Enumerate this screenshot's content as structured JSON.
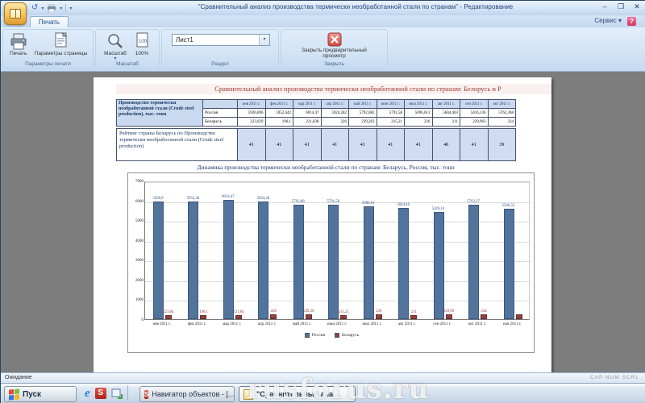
{
  "window": {
    "title": "\"Сравнительный анализ производства термически необработанной стали по странам\" - Редактирование",
    "service": "Сервис",
    "help": "?"
  },
  "tabs": {
    "print": "Печать"
  },
  "ribbon": {
    "print_btn": "Печать",
    "page_setup_btn": "Параметры страницы",
    "scale_btn": "Масштаб",
    "zoom100_btn": "100%",
    "sheet": "Лист1",
    "close_btn": "Закрыть предварительный просмотр",
    "group_print": "Параметры печати",
    "group_scale": "Масштаб",
    "group_section": "Раздел",
    "group_close": "Закрыть"
  },
  "icons": {
    "app": "orange-book",
    "qat": [
      "undo",
      "printer",
      "customize-arrow"
    ],
    "print": "printer",
    "page_setup": "page-with-printer",
    "scale": "magnifier",
    "zoom100": "page",
    "close_preview": "red-x",
    "help": "question-mark"
  },
  "document": {
    "title": "Сравнительный анализ производства термически необработанной стали по странам: Белорусь и Р",
    "table": {
      "corner_header": "Производство термически необработанной стали (Crude steel production), тыс. тонн",
      "months": [
        "янв 2011 г.",
        "фев 2011 г.",
        "мар 2011 г.",
        "апр 2011 г.",
        "май 2011 г.",
        "июн 2011 г.",
        "июл 2011 г.",
        "авг 2011 г.",
        "сен 2011 г.",
        "окт 2011 г."
      ],
      "rows": [
        {
          "label": "Россия",
          "values": [
            "5926,896",
            "5952,442",
            "6014,47",
            "5924,282",
            "5792,082",
            "5791,58",
            "5696,613",
            "5604,463",
            "5416,136",
            "5762,368"
          ]
        },
        {
          "label": "Беларусь",
          "values": [
            "223,039",
            "196,1",
            "221,838",
            "226",
            "239,263",
            "215,21",
            "226",
            "211",
            "229,963",
            "234"
          ]
        }
      ],
      "rating_label": "Рейтинг страны Беларусь по Производство термически необработанной стали (Crude steel production)",
      "rating_values": [
        "41",
        "41",
        "41",
        "41",
        "41",
        "41",
        "41",
        "40",
        "41",
        "39"
      ]
    }
  },
  "chart_data": {
    "type": "bar",
    "title": "Динамика производства термически необработанной стали по странам:   Беларусь, Россия, тыс. тонн",
    "categories": [
      "янв 2011 г.",
      "фев 2011 г.",
      "мар 2011 г.",
      "апр 2011 г.",
      "май 2011 г.",
      "июн 2011 г.",
      "июл 2011 г.",
      "авг 2011 г.",
      "сен 2011 г.",
      "окт 2011 г.",
      "ноя 2011 г."
    ],
    "series": [
      {
        "name": "Россия",
        "color": "#52749c",
        "border": "#3a567c",
        "label_color": "#1f497d",
        "values": [
          5926.896,
          5952.442,
          6014.47,
          5924.282,
          5792.082,
          5791.58,
          5696.613,
          5604.463,
          5416.136,
          5762.368,
          5566.53
        ],
        "labels": [
          "5926,9",
          "5952,44",
          "6014,47",
          "5924,28",
          "5792,08",
          "5791,58",
          "5696,61",
          "5604,46",
          "5416,14",
          "5762,37",
          "5566,53"
        ]
      },
      {
        "name": "Беларусь",
        "color": "#93403d",
        "border": "#662c2a",
        "label_color": "#8a3331",
        "values": [
          223.039,
          196.1,
          221.838,
          226,
          239.263,
          215.21,
          226,
          211,
          229.963,
          234,
          230
        ],
        "labels": [
          "223,04",
          "196,1",
          "221,84",
          "226",
          "239,26",
          "215,21",
          "226",
          "211",
          "229,96",
          "234",
          ""
        ]
      }
    ],
    "ylim": [
      0,
      7000
    ],
    "ytick": 1000,
    "grid": true,
    "legend_position": "bottom"
  },
  "statusbar": {
    "left": "Ожидание",
    "right": "CAP NUM SCRL"
  },
  "taskbar": {
    "start": "Пуск",
    "tasks": [
      {
        "label": "Навигатор объектов - [...]"
      },
      {
        "label": "\"Сравнительный ана..."
      }
    ],
    "watermark": "rusforus.ru"
  }
}
